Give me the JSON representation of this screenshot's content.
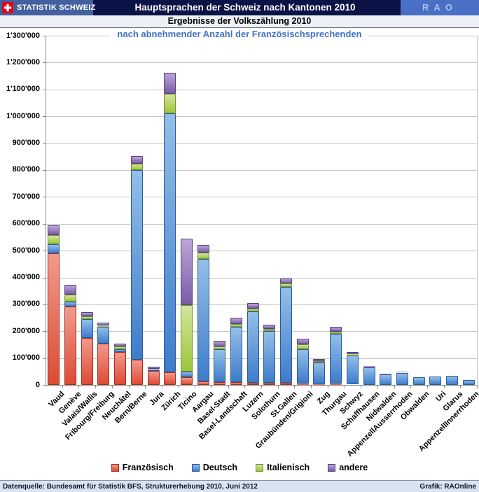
{
  "header": {
    "brand": "STATISTIK SCHWEIZ",
    "title": "Hauptsprachen der Schweiz nach Kantonen 2010",
    "logo_right": "RAO"
  },
  "subtitle": "Ergebnisse der Volkszählung 2010",
  "chart_subtitle": "nach abnehmender Anzahl der  Französischsprechenden",
  "footer": {
    "source": "Datenquelle: Bundesamt für Statistik BFS, Strukturerhebung 2010, Juni 2012",
    "credit": "Grafik: RAOnline"
  },
  "colors": {
    "titlebar_bg": "#0B1245",
    "brand_bg": "#43609F",
    "rao_bg": "#4A70C6",
    "rao_text": "#A9C2EE",
    "flag_red": "#E30613",
    "subtitle_blue": "#4472C4",
    "footer_bg": "#D9E4F1",
    "gridline": "#C6C6C6"
  },
  "chart_data": {
    "type": "bar",
    "stacked": true,
    "title": "Hauptsprachen der Schweiz nach Kantonen 2010",
    "subtitle": "nach abnehmender Anzahl der Französischsprechenden",
    "xlabel": "",
    "ylabel": "",
    "ylim": [
      0,
      1300000
    ],
    "y_tick_step": 100000,
    "grid": true,
    "legend_position": "bottom",
    "y_ticks": [
      "1'300'000",
      "1'200'000",
      "1'100'000",
      "1'000'000",
      "900'000",
      "800'000",
      "700'000",
      "600'000",
      "500'000",
      "400'000",
      "300'000",
      "200'000",
      "100'000",
      "0"
    ],
    "categories": [
      "Vaud",
      "Genève",
      "Valais/Wallis",
      "Fribourg/Freiburg",
      "Neuchâtel",
      "Bern/Berne",
      "Jura",
      "Zürich",
      "Ticino",
      "Aargau",
      "Basel-Stadt",
      "Basel-Landschaft",
      "Luzern",
      "Solothurn",
      "St.Gallen",
      "Graubünden/Grigioni",
      "Zug",
      "Thurgau",
      "Schwyz",
      "Schaffhausen",
      "Nidwalden",
      "AppenzellAusserrhoden",
      "Obwalden",
      "Uri",
      "Glarus",
      "AppenzellInnerrhoden"
    ],
    "series": [
      {
        "name": "Französisch",
        "color": "#DD4A33",
        "color_light": "#F2998D",
        "border": "#9E2F1E",
        "values": [
          490000,
          292000,
          174000,
          154000,
          122000,
          94000,
          52000,
          48000,
          28000,
          13000,
          10000,
          10000,
          8000,
          8000,
          8000,
          5000,
          3000,
          4000,
          2000,
          1000,
          500,
          500,
          500,
          300,
          300,
          200
        ]
      },
      {
        "name": "Deutsch",
        "color": "#3E7CCB",
        "color_light": "#93BFE8",
        "border": "#2C5A96",
        "values": [
          34000,
          17000,
          70000,
          63000,
          10000,
          705000,
          6000,
          964000,
          22000,
          457000,
          123000,
          205000,
          266000,
          192000,
          357000,
          127000,
          80000,
          186000,
          108000,
          63000,
          38000,
          45000,
          29000,
          31000,
          34000,
          17300
        ]
      },
      {
        "name": "Italienisch",
        "color": "#9DC43B",
        "color_light": "#D3E5A0",
        "border": "#71922B",
        "values": [
          33000,
          28000,
          11000,
          5000,
          11000,
          23000,
          2000,
          71000,
          248000,
          23000,
          9000,
          11000,
          11000,
          8000,
          14000,
          18000,
          6000,
          8000,
          5000,
          2000,
          1000,
          1000,
          500,
          1200,
          2000,
          500
        ]
      },
      {
        "name": "andere",
        "color": "#7A5CA6",
        "color_light": "#BCA6D8",
        "border": "#54407A",
        "values": [
          36000,
          36000,
          16000,
          10000,
          11000,
          29000,
          8000,
          79000,
          246000,
          27000,
          23000,
          25000,
          20000,
          15000,
          17000,
          22000,
          8000,
          17000,
          8000,
          4000,
          2500,
          3500,
          2000,
          1500,
          1700,
          1000
        ]
      }
    ]
  }
}
